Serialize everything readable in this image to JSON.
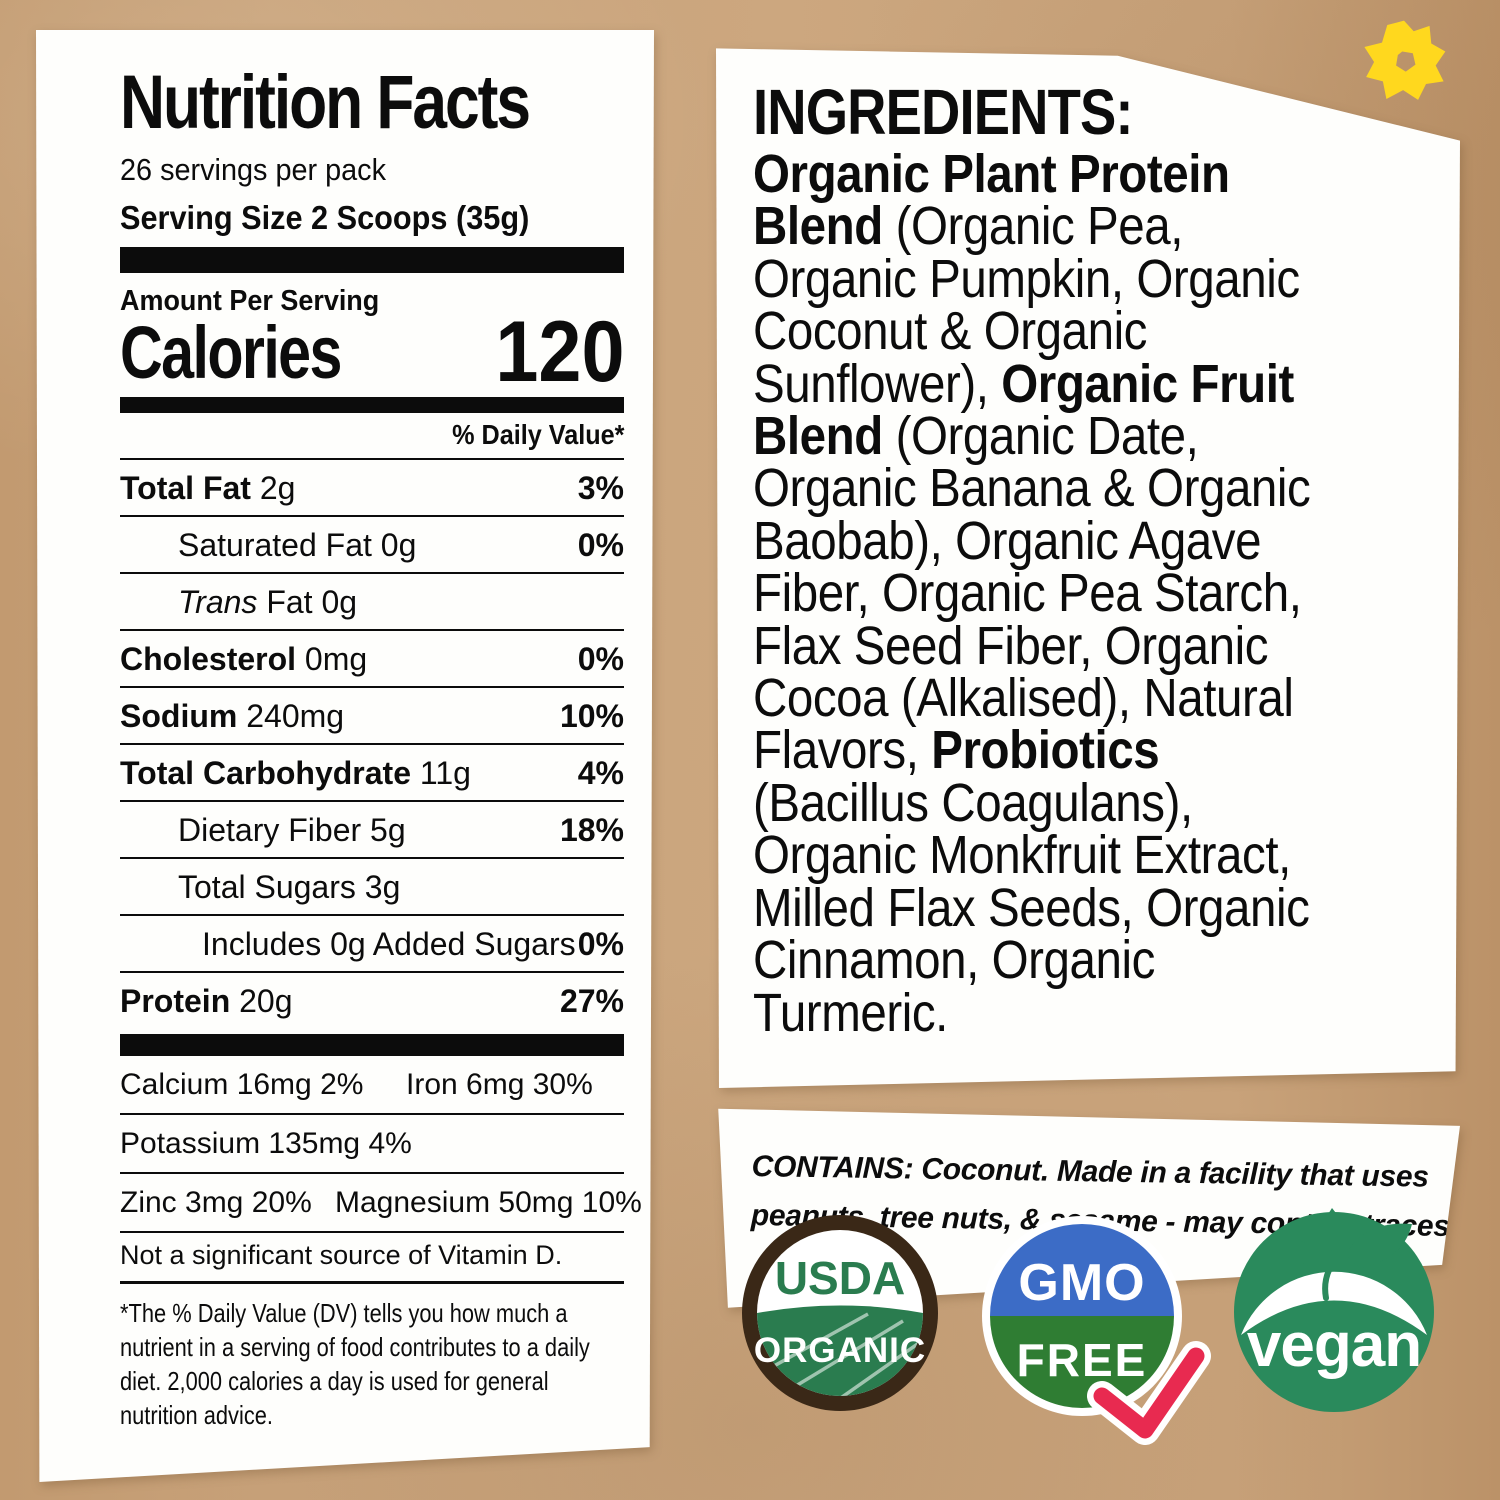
{
  "colors": {
    "kraft": "#c8a27a",
    "panel": "#fefefc",
    "ink": "#0c0c0c",
    "usda_brown": "#3a2817",
    "usda_green": "#2a7c4f",
    "gmo_blue": "#3c6cc6",
    "gmo_green": "#2f7d33",
    "check_red": "#e82a50",
    "vegan_green": "#2a8a5c",
    "star_yellow": "#ffd81e"
  },
  "nutrition_panel": {
    "title": "Nutrition Facts",
    "servings_per_pack": "26 servings per pack",
    "serving_size": "Serving Size 2 Scoops (35g)",
    "amount_per_serving": "Amount Per Serving",
    "calories_label": "Calories",
    "calories_value": "120",
    "daily_value_header": "% Daily Value*",
    "rows": [
      {
        "bold": "Total Fat",
        "rest": " 2g",
        "pct": "3%",
        "indent": 0
      },
      {
        "rest": "Saturated Fat 0g",
        "pct": "0%",
        "indent": 1
      },
      {
        "em": "Trans",
        "rest": " Fat 0g",
        "pct": "",
        "indent": 1
      },
      {
        "bold": "Cholesterol",
        "rest": " 0mg",
        "pct": "0%",
        "indent": 0
      },
      {
        "bold": "Sodium",
        "rest": " 240mg",
        "pct": "10%",
        "indent": 0
      },
      {
        "bold": "Total Carbohydrate",
        "rest": " 11g",
        "pct": "4%",
        "indent": 0
      },
      {
        "rest": "Dietary Fiber 5g",
        "pct": "18%",
        "indent": 1
      },
      {
        "rest": "Total Sugars 3g",
        "pct": "",
        "indent": 1
      },
      {
        "rest": "Includes 0g Added Sugars",
        "pct": "0%",
        "indent": 2
      },
      {
        "bold": "Protein",
        "rest": " 20g",
        "pct": "27%",
        "indent": 0,
        "last": true
      }
    ],
    "mineral_rows": [
      [
        "Calcium 16mg 2%",
        "Iron 6mg 30%"
      ],
      [
        "Potassium 135mg 4%"
      ],
      [
        "Zinc 3mg 20%",
        "Magnesium 50mg 10%"
      ]
    ],
    "vitamin_note": "Not a significant source of Vitamin D.",
    "footnote_lines": [
      "*The % Daily Value (DV) tells you how much a",
      "nutrient in a serving of food contributes to a daily",
      "diet. 2,000 calories a day is used for general",
      "nutrition advice."
    ]
  },
  "ingredients_panel": {
    "title": "INGREDIENTS:",
    "lines": [
      [
        {
          "t": "Organic Plant Protein",
          "b": true
        }
      ],
      [
        {
          "t": "Blend",
          "b": true
        },
        {
          "t": " (Organic Pea,"
        }
      ],
      [
        {
          "t": "Organic Pumpkin, Organic"
        }
      ],
      [
        {
          "t": "Coconut & Organic"
        }
      ],
      [
        {
          "t": "Sunflower), "
        },
        {
          "t": "Organic Fruit",
          "b": true
        }
      ],
      [
        {
          "t": "Blend",
          "b": true
        },
        {
          "t": " (Organic Date,"
        }
      ],
      [
        {
          "t": "Organic Banana & Organic"
        }
      ],
      [
        {
          "t": "Baobab), Organic Agave"
        }
      ],
      [
        {
          "t": "Fiber, Organic Pea Starch,"
        }
      ],
      [
        {
          "t": "Flax Seed Fiber, Organic"
        }
      ],
      [
        {
          "t": "Cocoa (Alkalised), Natural"
        }
      ],
      [
        {
          "t": "Flavors, "
        },
        {
          "t": "Probiotics",
          "b": true
        }
      ],
      [
        {
          "t": "(Bacillus Coagulans),"
        }
      ],
      [
        {
          "t": "Organic Monkfruit Extract,"
        }
      ],
      [
        {
          "t": "Milled Flax Seeds, Organic"
        }
      ],
      [
        {
          "t": "Cinnamon, Organic"
        }
      ],
      [
        {
          "t": "Turmeric."
        }
      ]
    ]
  },
  "contains_box": {
    "lines": [
      "CONTAINS: Coconut. Made in a facility that uses",
      "peanuts, tree nuts, & sesame - may contain traces."
    ]
  },
  "badges": {
    "usda": {
      "top": "USDA",
      "bottom": "ORGANIC"
    },
    "gmo": {
      "top": "GMO",
      "bottom": "FREE"
    },
    "vegan": {
      "label": "vegan"
    }
  }
}
